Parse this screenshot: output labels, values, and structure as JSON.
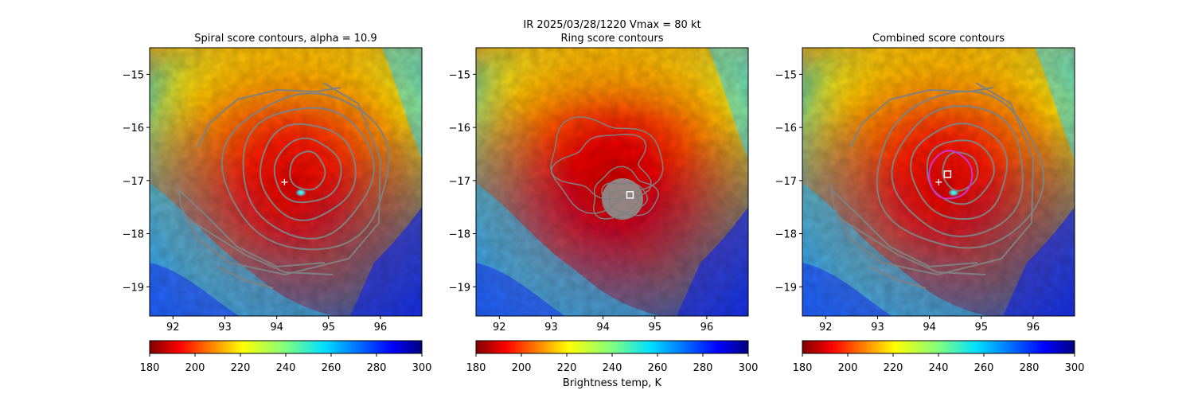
{
  "figure": {
    "suptitle_line1": "IR  2025/03/28/1220    Vmax = 80 kt",
    "colorbar_label": "Brightness temp, K"
  },
  "colors": {
    "contour": "#808080",
    "highlight_contour": "#cc33cc",
    "marker": "#ffffff"
  },
  "chart_data": [
    {
      "type": "heatmap",
      "title": "Spiral score contours, alpha = 10.9",
      "xlabel": "",
      "ylabel": "",
      "xlim": [
        91.55,
        96.8
      ],
      "ylim": [
        -19.55,
        -14.5
      ],
      "x_ticks": [
        92,
        93,
        94,
        95,
        96
      ],
      "x_tick_labels": [
        "92",
        "93",
        "94",
        "95",
        "96"
      ],
      "y_ticks": [
        -15,
        -16,
        -17,
        -18,
        -19
      ],
      "y_tick_labels": [
        "−15",
        "−16",
        "−17",
        "−18",
        "−19"
      ],
      "center_marker": {
        "symbol": "plus",
        "lon": 94.15,
        "lat": -17.03
      },
      "colorbar": {
        "label": "",
        "range": [
          180,
          300
        ],
        "ticks": [
          180,
          200,
          220,
          240,
          260,
          280,
          300
        ],
        "tick_labels": [
          "180",
          "200",
          "220",
          "240",
          "260",
          "280",
          "300"
        ],
        "colormap": "jet_r"
      }
    },
    {
      "type": "heatmap",
      "title": "Ring score contours",
      "xlabel": "",
      "ylabel": "",
      "xlim": [
        91.55,
        96.8
      ],
      "ylim": [
        -19.55,
        -14.5
      ],
      "x_ticks": [
        92,
        93,
        94,
        95,
        96
      ],
      "x_tick_labels": [
        "92",
        "93",
        "94",
        "95",
        "96"
      ],
      "y_ticks": [
        -15,
        -16,
        -17,
        -18,
        -19
      ],
      "y_tick_labels": [
        "−15",
        "−16",
        "−17",
        "−18",
        "−19"
      ],
      "center_marker": {
        "symbol": "square",
        "lon": 94.52,
        "lat": -17.27
      },
      "colorbar": {
        "label": "Brightness temp, K",
        "range": [
          180,
          300
        ],
        "ticks": [
          180,
          200,
          220,
          240,
          260,
          280,
          300
        ],
        "tick_labels": [
          "180",
          "200",
          "220",
          "240",
          "260",
          "280",
          "300"
        ],
        "colormap": "jet_r"
      }
    },
    {
      "type": "heatmap",
      "title": "Combined score contours",
      "xlabel": "",
      "ylabel": "",
      "xlim": [
        91.55,
        96.8
      ],
      "ylim": [
        -19.55,
        -14.5
      ],
      "x_ticks": [
        92,
        93,
        94,
        95,
        96
      ],
      "x_tick_labels": [
        "92",
        "93",
        "94",
        "95",
        "96"
      ],
      "y_ticks": [
        -15,
        -16,
        -17,
        -18,
        -19
      ],
      "y_tick_labels": [
        "−15",
        "−16",
        "−17",
        "−18",
        "−19"
      ],
      "center_marker": {
        "symbol": "plus",
        "lon": 94.18,
        "lat": -17.03
      },
      "secondary_marker": {
        "symbol": "square",
        "lon": 94.35,
        "lat": -16.88
      },
      "colorbar": {
        "label": "",
        "range": [
          180,
          300
        ],
        "ticks": [
          180,
          200,
          220,
          240,
          260,
          280,
          300
        ],
        "tick_labels": [
          "180",
          "200",
          "220",
          "240",
          "260",
          "280",
          "300"
        ],
        "colormap": "jet_r"
      }
    }
  ]
}
